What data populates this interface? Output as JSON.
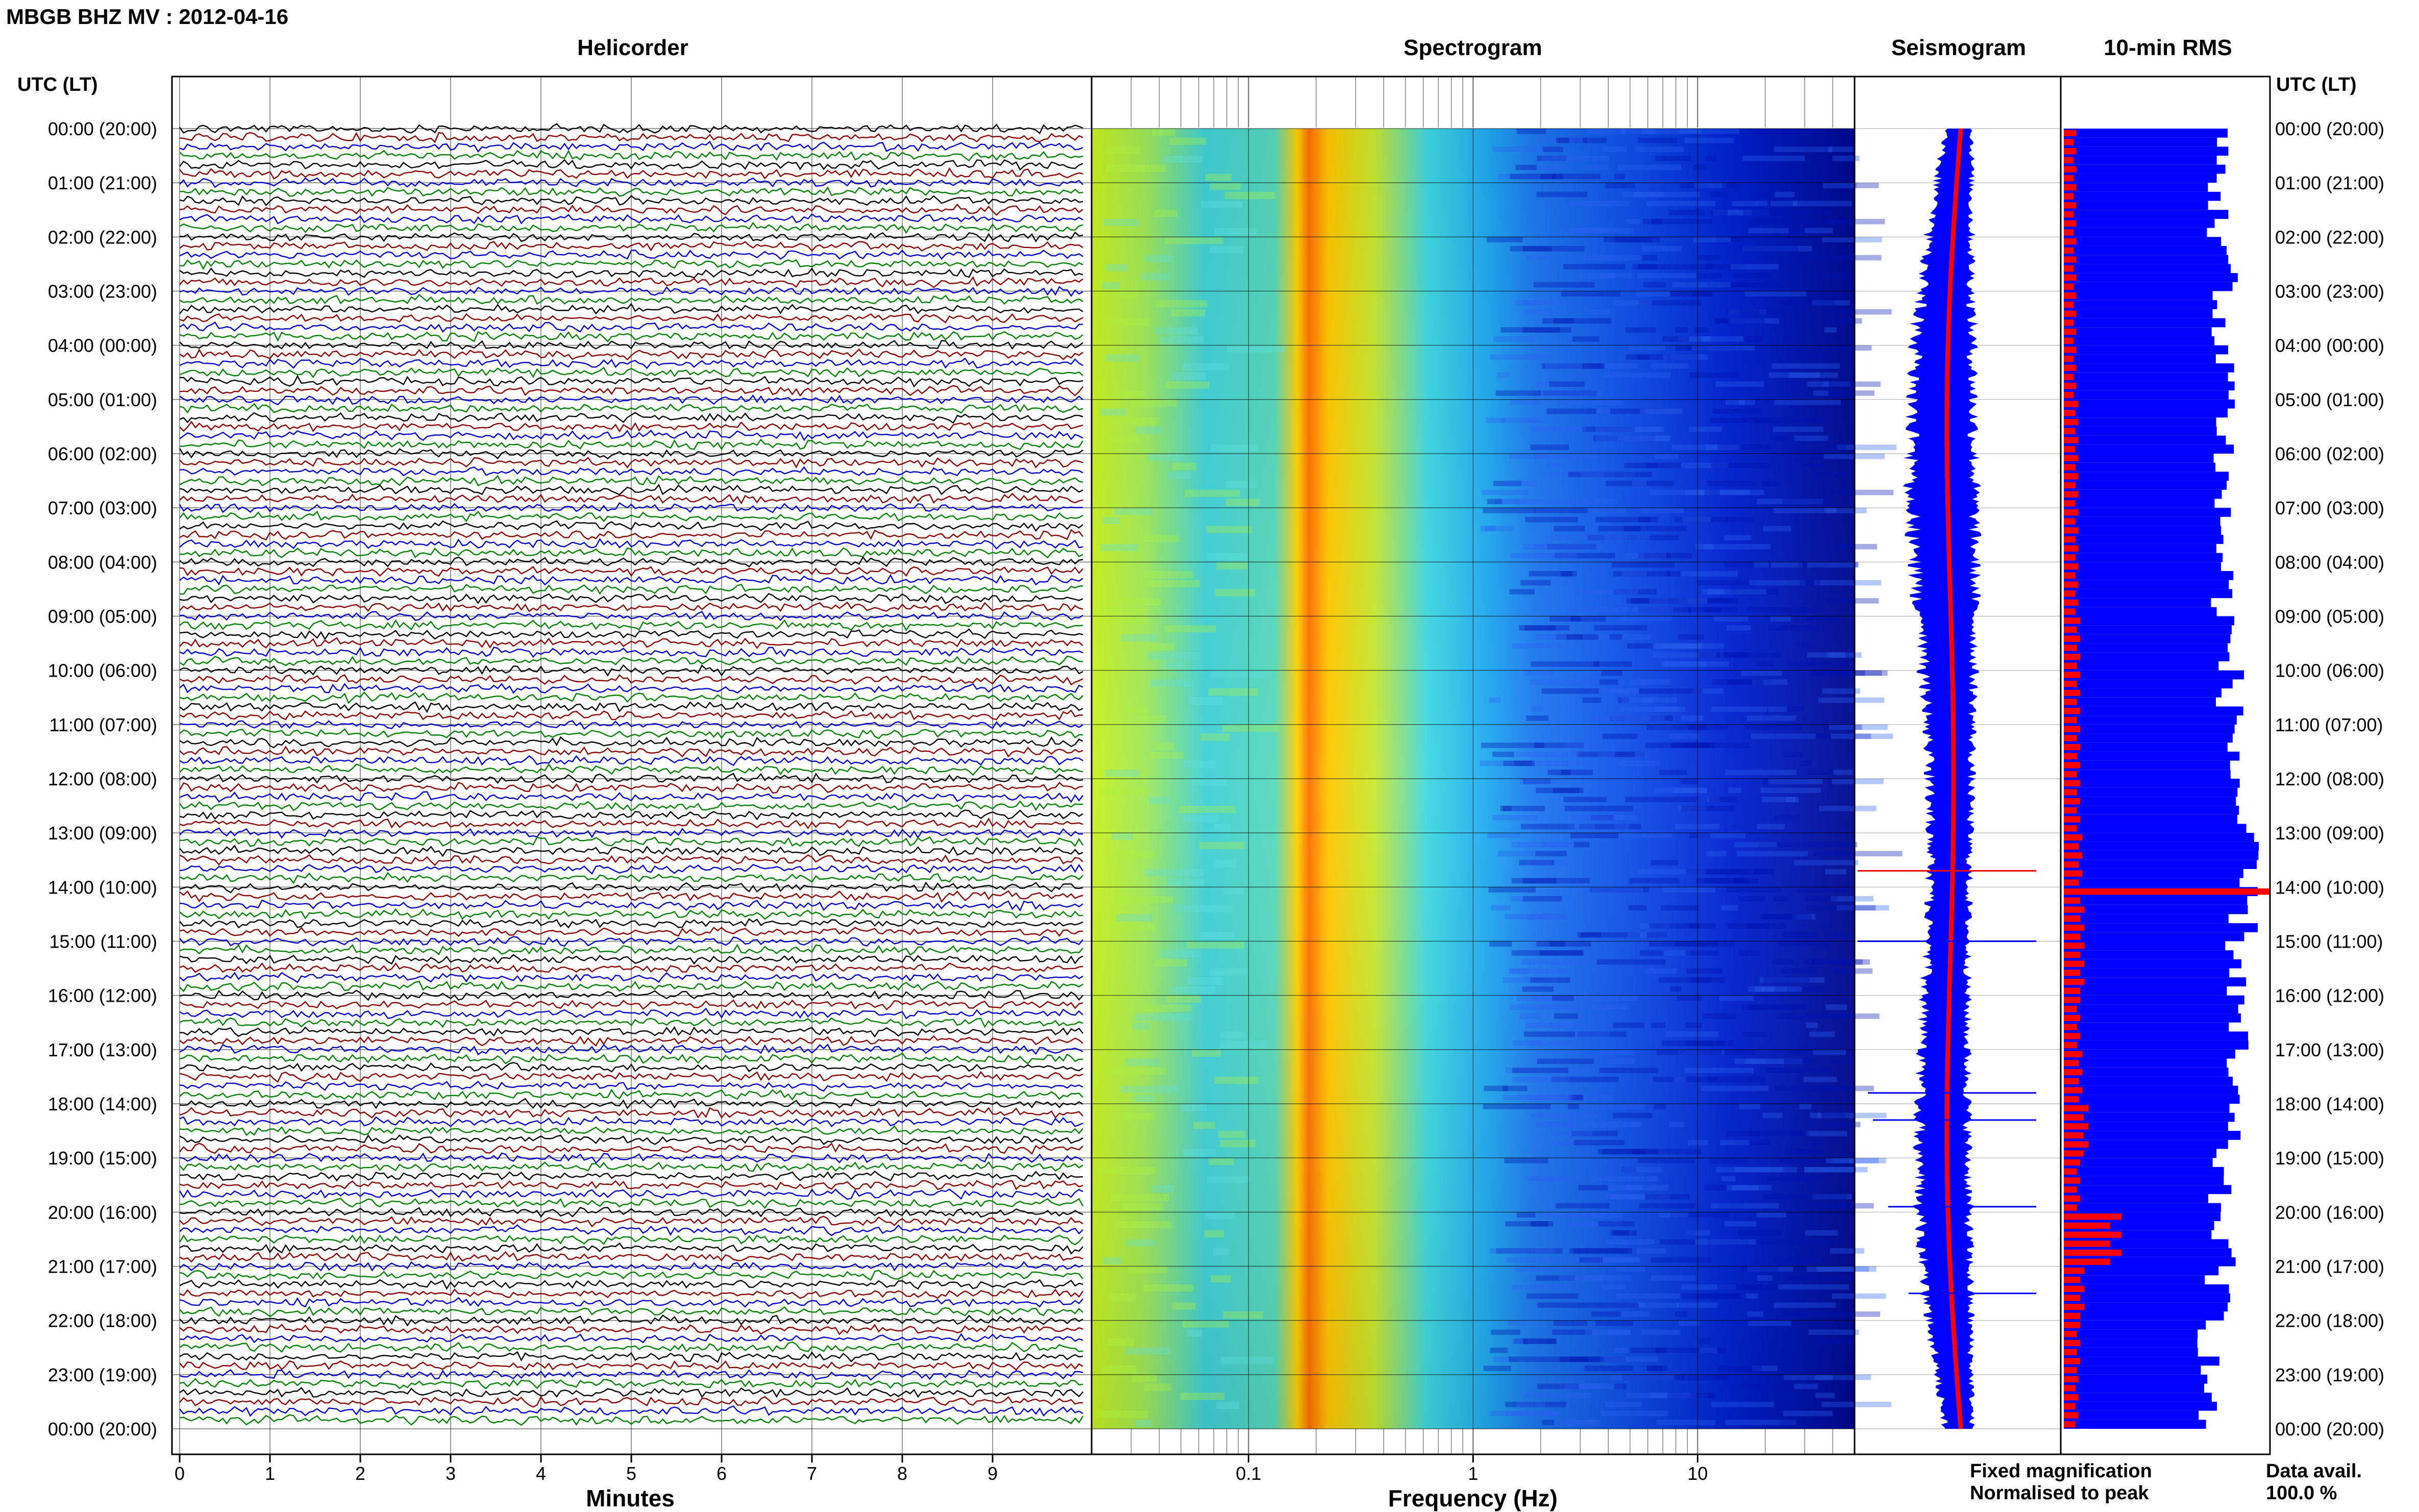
{
  "header": {
    "title": "MBGB BHZ MV : 2012-04-16"
  },
  "panels": {
    "helicorder": {
      "title": "Helicorder",
      "xlabel": "Minutes"
    },
    "spectrogram": {
      "title": "Spectrogram",
      "xlabel": "Frequency (Hz)"
    },
    "seismogram": {
      "title": "Seismogram"
    },
    "rms": {
      "title": "10-min RMS"
    }
  },
  "axis_labels": {
    "left_header": "UTC (LT)",
    "right_header": "UTC (LT)"
  },
  "time_labels": [
    "00:00 (20:00)",
    "01:00 (21:00)",
    "02:00 (22:00)",
    "03:00 (23:00)",
    "04:00 (00:00)",
    "05:00 (01:00)",
    "06:00 (02:00)",
    "07:00 (03:00)",
    "08:00 (04:00)",
    "09:00 (05:00)",
    "10:00 (06:00)",
    "11:00 (07:00)",
    "12:00 (08:00)",
    "13:00 (09:00)",
    "14:00 (10:00)",
    "15:00 (11:00)",
    "16:00 (12:00)",
    "17:00 (13:00)",
    "18:00 (14:00)",
    "19:00 (15:00)",
    "20:00 (16:00)",
    "21:00 (17:00)",
    "22:00 (18:00)",
    "23:00 (19:00)",
    "00:00 (20:00)"
  ],
  "legend": {
    "fixed_label": "Fixed magnification",
    "fixed_color": "#0000ff",
    "normalised_label": "Normalised to peak",
    "normalised_color": "#ff0000"
  },
  "data_avail": {
    "label": "Data avail.",
    "value": "100.0 %"
  },
  "colors": {
    "trace_cycle": [
      "#000000",
      "#8b0000",
      "#0000cd",
      "#008000"
    ],
    "rms_blue": "#0000ff",
    "rms_red": "#ff0000",
    "spectrogram_scale": [
      "#00008b",
      "#0000ff",
      "#00bfff",
      "#7fffd4",
      "#ffff00",
      "#ffa500",
      "#ff4500"
    ]
  },
  "chart_data": [
    {
      "type": "line",
      "title": "Helicorder",
      "xlabel": "Minutes",
      "xlim": [
        0,
        10
      ],
      "x_ticks": [
        0,
        1,
        2,
        3,
        4,
        5,
        6,
        7,
        8,
        9
      ],
      "rows_per_hour": 6,
      "total_rows": 144,
      "y_tick_labels": "time_labels"
    },
    {
      "type": "heatmap",
      "title": "Spectrogram",
      "xlabel": "Frequency (Hz)",
      "x_scale": "log",
      "xlim": [
        0.02,
        50
      ],
      "x_tick_labels": [
        "0.1",
        "1",
        "10"
      ],
      "x_tick_values": [
        0.1,
        1,
        10
      ],
      "peak_band_hz": [
        0.2,
        0.3
      ],
      "rows": 144
    },
    {
      "type": "area",
      "title": "Seismogram",
      "series": [
        {
          "name": "Fixed magnification",
          "color": "#0000ff"
        },
        {
          "name": "Normalised to peak",
          "color": "#ff0000"
        }
      ],
      "notes_hours": [
        0,
        24
      ]
    },
    {
      "type": "bar",
      "title": "10-min RMS",
      "orientation": "horizontal",
      "rows": 144,
      "series": [
        {
          "name": "Fixed magnification",
          "color": "#0000ff",
          "hourly_level": [
            0.75,
            0.74,
            0.78,
            0.72,
            0.8,
            0.78,
            0.76,
            0.76,
            0.77,
            0.78,
            0.8,
            0.82,
            0.84,
            0.86,
            0.86,
            0.84,
            0.82,
            0.8,
            0.78,
            0.74,
            0.76,
            0.74,
            0.7,
            0.68
          ]
        },
        {
          "name": "Normalised to peak",
          "color": "#ff0000",
          "hourly_level": [
            0.06,
            0.06,
            0.06,
            0.06,
            0.06,
            0.07,
            0.07,
            0.07,
            0.07,
            0.08,
            0.08,
            0.08,
            0.08,
            0.09,
            1.0,
            0.1,
            0.08,
            0.09,
            0.12,
            0.08,
            0.28,
            0.1,
            0.08,
            0.07
          ]
        }
      ]
    }
  ]
}
